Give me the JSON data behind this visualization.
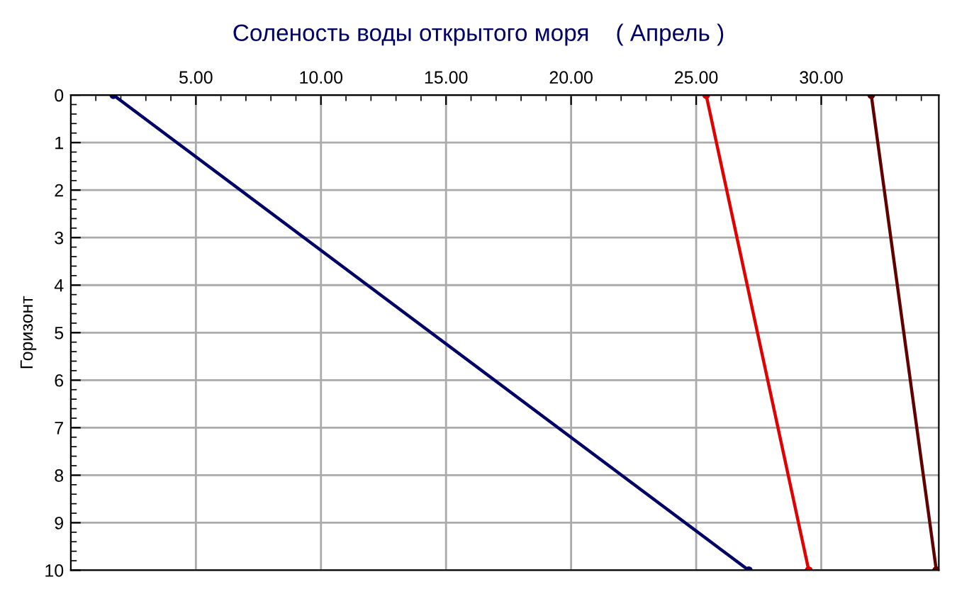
{
  "chart_data": {
    "type": "line",
    "title": "Соленость воды открытого моря    ( Апрель )",
    "ylabel": "Горизонт",
    "series": [
      {
        "color": "#000066",
        "x": [
          1.7,
          27.1
        ],
        "values": [
          0,
          10
        ]
      },
      {
        "color": "#e00000",
        "x": [
          25.4,
          29.5
        ],
        "values": [
          0,
          10
        ]
      },
      {
        "color": "#600000",
        "x": [
          32.0,
          34.6
        ],
        "values": [
          0,
          10
        ]
      }
    ],
    "xlim": [
      0,
      34.7
    ],
    "xticks": [
      {
        "value": 5,
        "label": "5.00"
      },
      {
        "value": 10,
        "label": "10.00"
      },
      {
        "value": 15,
        "label": "15.00"
      },
      {
        "value": 20,
        "label": "20.00"
      },
      {
        "value": 25,
        "label": "25.00"
      },
      {
        "value": 30,
        "label": "30.00"
      }
    ],
    "ylim": [
      10,
      0
    ],
    "yticks": [
      0,
      1,
      2,
      3,
      4,
      5,
      6,
      7,
      8,
      9,
      10
    ],
    "grid": true,
    "marker": "circle",
    "line_style": "solid",
    "legend": false
  }
}
